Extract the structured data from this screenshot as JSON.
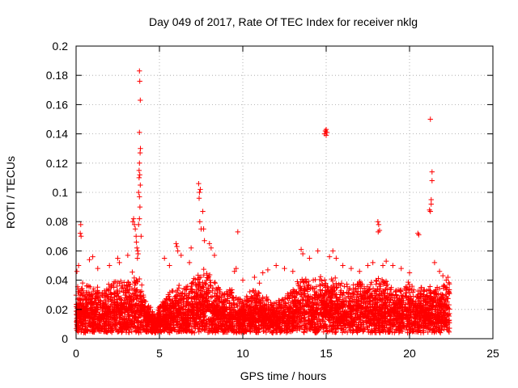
{
  "chart_data": {
    "type": "scatter",
    "title": "Day 049 of 2017, Rate Of TEC Index for receiver nklg",
    "xlabel": "GPS time / hours",
    "ylabel": "ROTI / TECUs",
    "xlim": [
      0,
      25
    ],
    "ylim": [
      0,
      0.2
    ],
    "xticks": [
      "0",
      "5",
      "10",
      "15",
      "20",
      "25"
    ],
    "yticks": [
      "0",
      "0.02",
      "0.04",
      "0.06",
      "0.08",
      "0.1",
      "0.12",
      "0.14",
      "0.16",
      "0.18",
      "0.2"
    ],
    "grid": true,
    "marker": "plus",
    "color": "#ff0000",
    "points": [
      [
        0.05,
        0.046
      ],
      [
        0.15,
        0.05
      ],
      [
        0.25,
        0.072
      ],
      [
        0.28,
        0.078
      ],
      [
        0.3,
        0.07
      ],
      [
        0.8,
        0.054
      ],
      [
        1.0,
        0.056
      ],
      [
        1.3,
        0.048
      ],
      [
        2.0,
        0.05
      ],
      [
        2.5,
        0.055
      ],
      [
        2.6,
        0.052
      ],
      [
        3.1,
        0.057
      ],
      [
        3.4,
        0.08
      ],
      [
        3.45,
        0.082
      ],
      [
        3.5,
        0.078
      ],
      [
        3.55,
        0.075
      ],
      [
        3.6,
        0.07
      ],
      [
        3.62,
        0.066
      ],
      [
        3.65,
        0.062
      ],
      [
        3.7,
        0.06
      ],
      [
        3.72,
        0.058
      ],
      [
        3.68,
        0.055
      ],
      [
        3.75,
        0.1
      ],
      [
        3.78,
        0.11
      ],
      [
        3.8,
        0.183
      ],
      [
        3.82,
        0.176
      ],
      [
        3.85,
        0.163
      ],
      [
        3.8,
        0.141
      ],
      [
        3.86,
        0.13
      ],
      [
        3.84,
        0.127
      ],
      [
        3.8,
        0.12
      ],
      [
        3.78,
        0.115
      ],
      [
        3.82,
        0.112
      ],
      [
        3.85,
        0.105
      ],
      [
        3.8,
        0.097
      ],
      [
        3.83,
        0.09
      ],
      [
        3.8,
        0.082
      ],
      [
        3.75,
        0.078
      ],
      [
        3.9,
        0.07
      ],
      [
        5.3,
        0.055
      ],
      [
        5.6,
        0.05
      ],
      [
        6.0,
        0.065
      ],
      [
        6.05,
        0.063
      ],
      [
        6.1,
        0.06
      ],
      [
        6.3,
        0.057
      ],
      [
        6.8,
        0.052
      ],
      [
        6.9,
        0.062
      ],
      [
        7.35,
        0.106
      ],
      [
        7.4,
        0.1
      ],
      [
        7.45,
        0.102
      ],
      [
        7.38,
        0.096
      ],
      [
        7.42,
        0.08
      ],
      [
        7.5,
        0.075
      ],
      [
        7.6,
        0.087
      ],
      [
        7.65,
        0.075
      ],
      [
        7.7,
        0.067
      ],
      [
        8.0,
        0.065
      ],
      [
        8.1,
        0.062
      ],
      [
        8.3,
        0.057
      ],
      [
        9.7,
        0.073
      ],
      [
        9.5,
        0.046
      ],
      [
        9.6,
        0.048
      ],
      [
        10.0,
        0.04
      ],
      [
        10.7,
        0.042
      ],
      [
        11.0,
        0.038
      ],
      [
        11.2,
        0.045
      ],
      [
        11.5,
        0.047
      ],
      [
        12.0,
        0.05
      ],
      [
        12.5,
        0.048
      ],
      [
        13.0,
        0.046
      ],
      [
        13.5,
        0.061
      ],
      [
        13.6,
        0.058
      ],
      [
        14.0,
        0.055
      ],
      [
        14.5,
        0.06
      ],
      [
        14.9,
        0.14
      ],
      [
        14.95,
        0.142
      ],
      [
        15.0,
        0.143
      ],
      [
        15.05,
        0.141
      ],
      [
        15.0,
        0.139
      ],
      [
        15.2,
        0.056
      ],
      [
        15.4,
        0.06
      ],
      [
        15.6,
        0.055
      ],
      [
        16.0,
        0.05
      ],
      [
        16.5,
        0.048
      ],
      [
        17.0,
        0.046
      ],
      [
        17.5,
        0.05
      ],
      [
        17.8,
        0.052
      ],
      [
        18.1,
        0.08
      ],
      [
        18.15,
        0.078
      ],
      [
        18.2,
        0.074
      ],
      [
        18.12,
        0.073
      ],
      [
        18.4,
        0.05
      ],
      [
        18.6,
        0.053
      ],
      [
        19.0,
        0.05
      ],
      [
        19.5,
        0.048
      ],
      [
        20.0,
        0.045
      ],
      [
        20.5,
        0.072
      ],
      [
        20.55,
        0.071
      ],
      [
        21.2,
        0.088
      ],
      [
        21.25,
        0.087
      ],
      [
        21.3,
        0.095
      ],
      [
        21.3,
        0.092
      ],
      [
        21.35,
        0.108
      ],
      [
        21.35,
        0.114
      ],
      [
        21.25,
        0.15
      ],
      [
        21.5,
        0.052
      ],
      [
        21.8,
        0.046
      ],
      [
        22.0,
        0.043
      ],
      [
        22.2,
        0.04
      ],
      [
        22.3,
        0.042
      ]
    ],
    "dense_band": {
      "x_range": [
        0,
        22.4
      ],
      "envelope": [
        [
          0,
          0.036
        ],
        [
          0.5,
          0.04
        ],
        [
          1.0,
          0.038
        ],
        [
          1.5,
          0.035
        ],
        [
          2.0,
          0.038
        ],
        [
          2.5,
          0.042
        ],
        [
          3.0,
          0.04
        ],
        [
          3.5,
          0.048
        ],
        [
          3.9,
          0.042
        ],
        [
          4.2,
          0.025
        ],
        [
          4.5,
          0.022
        ],
        [
          5.0,
          0.022
        ],
        [
          5.3,
          0.03
        ],
        [
          5.8,
          0.035
        ],
        [
          6.3,
          0.038
        ],
        [
          6.8,
          0.04
        ],
        [
          7.3,
          0.045
        ],
        [
          7.8,
          0.05
        ],
        [
          8.3,
          0.04
        ],
        [
          8.8,
          0.032
        ],
        [
          9.3,
          0.035
        ],
        [
          9.8,
          0.028
        ],
        [
          10.3,
          0.032
        ],
        [
          10.8,
          0.035
        ],
        [
          11.3,
          0.03
        ],
        [
          11.8,
          0.025
        ],
        [
          12.3,
          0.028
        ],
        [
          12.8,
          0.032
        ],
        [
          13.3,
          0.04
        ],
        [
          13.8,
          0.042
        ],
        [
          14.3,
          0.04
        ],
        [
          14.8,
          0.045
        ],
        [
          15.3,
          0.045
        ],
        [
          15.8,
          0.04
        ],
        [
          16.3,
          0.038
        ],
        [
          16.8,
          0.04
        ],
        [
          17.3,
          0.042
        ],
        [
          17.8,
          0.04
        ],
        [
          18.3,
          0.042
        ],
        [
          18.8,
          0.04
        ],
        [
          19.3,
          0.038
        ],
        [
          19.8,
          0.04
        ],
        [
          20.3,
          0.035
        ],
        [
          20.8,
          0.036
        ],
        [
          21.3,
          0.04
        ],
        [
          21.8,
          0.038
        ],
        [
          22.4,
          0.04
        ]
      ],
      "floor": 0.004
    }
  }
}
